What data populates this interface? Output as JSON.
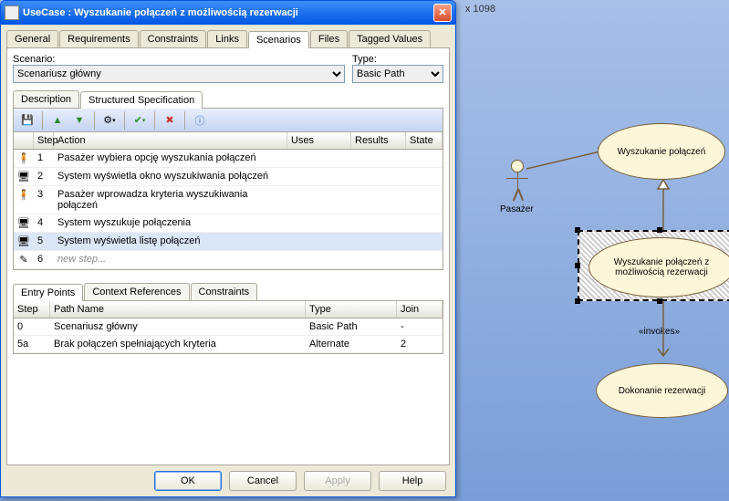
{
  "canvas_size": "x 1098",
  "dialog": {
    "title": "UseCase : Wyszukanie połączeń z możliwością rezerwacji",
    "tabs": [
      "General",
      "Requirements",
      "Constraints",
      "Links",
      "Scenarios",
      "Files",
      "Tagged Values"
    ],
    "active_tab": 4,
    "scenario_label": "Scenario:",
    "scenario_value": "Scenariusz główny",
    "type_label": "Type:",
    "type_value": "Basic Path",
    "subtabs": [
      "Description",
      "Structured Specification"
    ],
    "active_subtab": 1,
    "cols": {
      "step": "Step",
      "action": "Action",
      "uses": "Uses",
      "results": "Results",
      "state": "State"
    },
    "steps": [
      {
        "icon": "actor",
        "n": "1",
        "action": "Pasażer wybiera opcję wyszukania połączeń"
      },
      {
        "icon": "system",
        "n": "2",
        "action": "System wyświetla okno wyszukiwania połączeń"
      },
      {
        "icon": "actor",
        "n": "3",
        "action": "Pasażer wprowadza kryteria wyszukiwania połączeń"
      },
      {
        "icon": "system",
        "n": "4",
        "action": "System wyszukuje połączenia"
      },
      {
        "icon": "system",
        "n": "5",
        "action": "System wyświetla listę połączeń",
        "sel": true
      },
      {
        "icon": "new",
        "n": "6",
        "action": "new step...",
        "new": true
      }
    ],
    "subtabs2": [
      "Entry Points",
      "Context References",
      "Constraints"
    ],
    "active_subtab2": 0,
    "cols2": {
      "step": "Step",
      "name": "Path Name",
      "type": "Type",
      "join": "Join"
    },
    "paths": [
      {
        "step": "0",
        "name": "Scenariusz główny",
        "type": "Basic Path",
        "join": "-"
      },
      {
        "step": "5a",
        "name": "Brak połączeń spełniających kryteria",
        "type": "Alternate",
        "join": "2"
      }
    ],
    "buttons": {
      "ok": "OK",
      "cancel": "Cancel",
      "apply": "Apply",
      "help": "Help"
    }
  },
  "diagram": {
    "actor_label": "Pasażer",
    "uc1": "Wyszukanie połączeń",
    "uc2": "Wyszukanie połączeń z możliwością rezerwacji",
    "uc3": "Dokonanie rezerwacji",
    "invokes": "«invokes»"
  }
}
